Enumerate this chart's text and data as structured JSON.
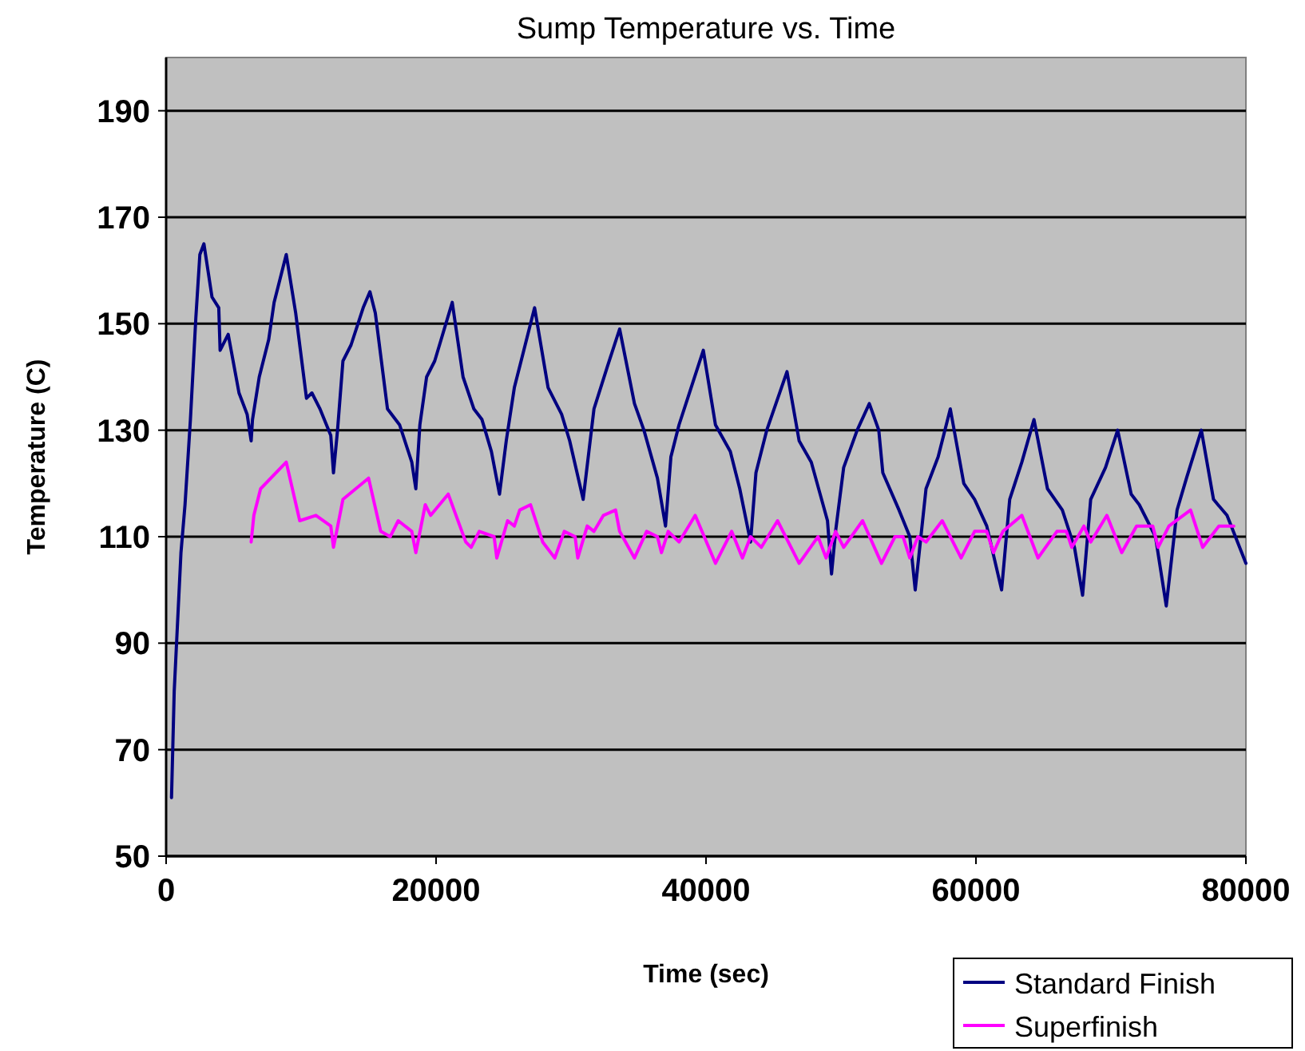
{
  "chart_data": {
    "type": "line",
    "title": "Sump Temperature vs. Time",
    "xlabel": "Time (sec)",
    "ylabel": "Temperature (C)",
    "xlim": [
      0,
      80000
    ],
    "xticks": [
      0,
      20000,
      40000,
      60000,
      80000
    ],
    "ylim": [
      50,
      200
    ],
    "yticks": [
      50,
      70,
      90,
      110,
      130,
      150,
      170,
      190
    ],
    "grid": "y",
    "legend": "bottom right",
    "marker": "none",
    "series": [
      {
        "name": "Standard Finish",
        "color": "#000080",
        "x": [
          400,
          600,
          1100,
          1400,
          1800,
          2200,
          2500,
          2800,
          3400,
          3900,
          4000,
          4600,
          5400,
          6000,
          6300,
          6400,
          6900,
          7600,
          8000,
          8900,
          9600,
          10400,
          10800,
          11400,
          12200,
          12400,
          12700,
          13100,
          13700,
          14600,
          15100,
          15500,
          16400,
          17300,
          18200,
          18500,
          18800,
          19300,
          19900,
          21200,
          22000,
          22800,
          23400,
          24100,
          24700,
          25200,
          25800,
          26500,
          27300,
          28300,
          29300,
          29900,
          30900,
          31700,
          32700,
          33600,
          34700,
          35400,
          36400,
          37000,
          37400,
          38000,
          39800,
          40700,
          41800,
          42500,
          43300,
          43700,
          44500,
          46000,
          46900,
          47800,
          49000,
          49300,
          49600,
          50200,
          51200,
          52100,
          52800,
          53100,
          54300,
          55100,
          55500,
          56300,
          57200,
          58100,
          59100,
          59900,
          60800,
          61900,
          62500,
          63400,
          64300,
          65300,
          66400,
          67300,
          67900,
          68500,
          69600,
          70500,
          71500,
          72100,
          73300,
          74100,
          74900,
          75600,
          76700,
          77600,
          78600,
          80000
        ],
        "values": [
          61,
          81,
          107,
          116,
          132,
          151,
          163,
          165,
          155,
          153,
          145,
          148,
          137,
          133,
          128,
          132,
          140,
          147,
          154,
          163,
          152,
          136,
          137,
          134,
          129,
          122,
          130,
          143,
          146,
          153,
          156,
          152,
          134,
          131,
          124,
          119,
          131,
          140,
          143,
          154,
          140,
          134,
          132,
          126,
          118,
          128,
          138,
          145,
          153,
          138,
          133,
          128,
          117,
          134,
          142,
          149,
          135,
          130,
          121,
          112,
          125,
          131,
          145,
          131,
          126,
          119,
          109,
          122,
          130,
          141,
          128,
          124,
          113,
          103,
          111,
          123,
          130,
          135,
          130,
          122,
          115,
          110,
          100,
          119,
          125,
          134,
          120,
          117,
          112,
          100,
          117,
          124,
          132,
          119,
          115,
          108,
          99,
          117,
          123,
          130,
          118,
          116,
          110,
          97,
          115,
          121,
          130,
          117,
          114,
          105
        ]
      },
      {
        "name": "Superfinish",
        "color": "#ff00ff",
        "x": [
          6300,
          6500,
          7000,
          8900,
          9900,
          11100,
          12200,
          12400,
          13100,
          15000,
          15900,
          16600,
          17200,
          18200,
          18500,
          19200,
          19600,
          20900,
          22200,
          22600,
          23200,
          24300,
          24500,
          25300,
          25800,
          26200,
          27000,
          27900,
          28800,
          29500,
          30300,
          30500,
          31200,
          31700,
          32400,
          33300,
          33600,
          34700,
          35600,
          36400,
          36700,
          37200,
          38000,
          39200,
          40700,
          41900,
          42700,
          43300,
          44100,
          45300,
          46900,
          48300,
          48900,
          49600,
          50200,
          51600,
          53000,
          54000,
          54600,
          55100,
          55700,
          56300,
          57500,
          58900,
          59900,
          60800,
          61300,
          62000,
          63400,
          64600,
          66000,
          66700,
          67100,
          68000,
          68500,
          69700,
          70800,
          71900,
          73100,
          73500,
          74300,
          75900,
          76800,
          78000,
          79100
        ],
        "values": [
          109,
          114,
          119,
          124,
          113,
          114,
          112,
          108,
          117,
          121,
          111,
          110,
          113,
          111,
          107,
          116,
          114,
          118,
          109,
          108,
          111,
          110,
          106,
          113,
          112,
          115,
          116,
          109,
          106,
          111,
          110,
          106,
          112,
          111,
          114,
          115,
          111,
          106,
          111,
          110,
          107,
          111,
          109,
          114,
          105,
          111,
          106,
          110,
          108,
          113,
          105,
          110,
          106,
          111,
          108,
          113,
          105,
          110,
          110,
          106,
          110,
          109,
          113,
          106,
          111,
          111,
          107,
          111,
          114,
          106,
          111,
          111,
          108,
          112,
          109,
          114,
          107,
          112,
          112,
          108,
          112,
          115,
          108,
          112,
          112
        ]
      }
    ]
  }
}
